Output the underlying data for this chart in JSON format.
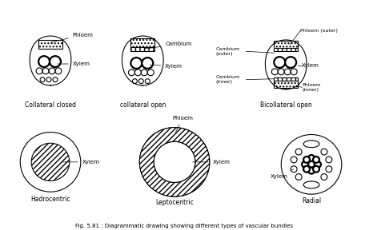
{
  "title": "Fig. 5.81 : Diagrammatic drawing showing different types of vascular bundles",
  "background_color": "#ffffff",
  "line_color": "#000000",
  "labels": {
    "collateral_closed": "Collateral closed",
    "collateral_open": "collateral open",
    "bicollateral_open": "Bicollateral open",
    "hadrocentric": "Hadrocentric",
    "leptocentric": "Leptocentric",
    "radial": "Radial"
  },
  "annotations": {
    "phloem": "Phloem",
    "cambium": "Cambium",
    "xylem": "Xylem",
    "phloem_outer": "Phloem (outer)",
    "phloem_inner": "Phloem\n(inner)",
    "cambium_outer": "Cambium\n(outer)",
    "cambium_inner": "Cambium\n(inner)",
    "phloem_leptocentric": "Phloem",
    "xylem_hadrocentric": "Xylem",
    "xylem_leptocentric": "Xylem",
    "xylem_radial": "Xylem"
  }
}
